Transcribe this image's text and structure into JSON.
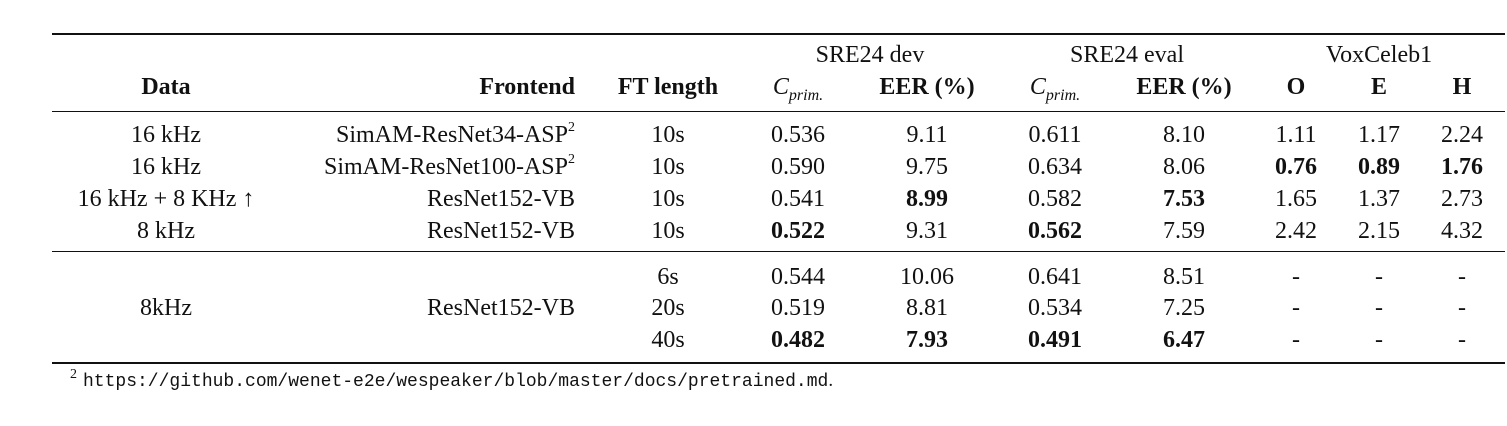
{
  "groups": {
    "sre24_dev": "SRE24 dev",
    "sre24_eval": "SRE24 eval",
    "voxceleb1": "VoxCeleb1"
  },
  "headers": {
    "data": "Data",
    "frontend": "Frontend",
    "ft_length": "FT length",
    "cprim_base": "C",
    "cprim_sub": "prim.",
    "eer": "EER (%)",
    "o": "O",
    "e": "E",
    "h": "H"
  },
  "rows_top": [
    {
      "data": "16 kHz",
      "frontend": "SimAM-ResNet34-ASP",
      "frontend_sup": "2",
      "ft": "10s",
      "dev_c": "0.536",
      "dev_eer": "9.11",
      "eval_c": "0.611",
      "eval_eer": "8.10",
      "o": "1.11",
      "e": "1.17",
      "h": "2.24"
    },
    {
      "data": "16 kHz",
      "frontend": "SimAM-ResNet100-ASP",
      "frontend_sup": "2",
      "ft": "10s",
      "dev_c": "0.590",
      "dev_eer": "9.75",
      "eval_c": "0.634",
      "eval_eer": "8.06",
      "o": "0.76",
      "e": "0.89",
      "h": "1.76"
    },
    {
      "data": "16 kHz + 8 KHz ↑",
      "frontend": "ResNet152-VB",
      "frontend_sup": "",
      "ft": "10s",
      "dev_c": "0.541",
      "dev_eer": "8.99",
      "eval_c": "0.582",
      "eval_eer": "7.53",
      "o": "1.65",
      "e": "1.37",
      "h": "2.73"
    },
    {
      "data": "8 kHz",
      "frontend": "ResNet152-VB",
      "frontend_sup": "",
      "ft": "10s",
      "dev_c": "0.522",
      "dev_eer": "9.31",
      "eval_c": "0.562",
      "eval_eer": "7.59",
      "o": "2.42",
      "e": "2.15",
      "h": "4.32"
    }
  ],
  "rows_bottom": {
    "data": "8kHz",
    "frontend": "ResNet152-VB",
    "rows": [
      {
        "ft": "6s",
        "dev_c": "0.544",
        "dev_eer": "10.06",
        "eval_c": "0.641",
        "eval_eer": "8.51",
        "o": "-",
        "e": "-",
        "h": "-"
      },
      {
        "ft": "20s",
        "dev_c": "0.519",
        "dev_eer": "8.81",
        "eval_c": "0.534",
        "eval_eer": "7.25",
        "o": "-",
        "e": "-",
        "h": "-"
      },
      {
        "ft": "40s",
        "dev_c": "0.482",
        "dev_eer": "7.93",
        "eval_c": "0.491",
        "eval_eer": "6.47",
        "o": "-",
        "e": "-",
        "h": "-"
      }
    ]
  },
  "footnote": {
    "mark": "2",
    "url": "https://github.com/wenet-e2e/wespeaker/blob/master/docs/pretrained.md",
    "end": "."
  }
}
